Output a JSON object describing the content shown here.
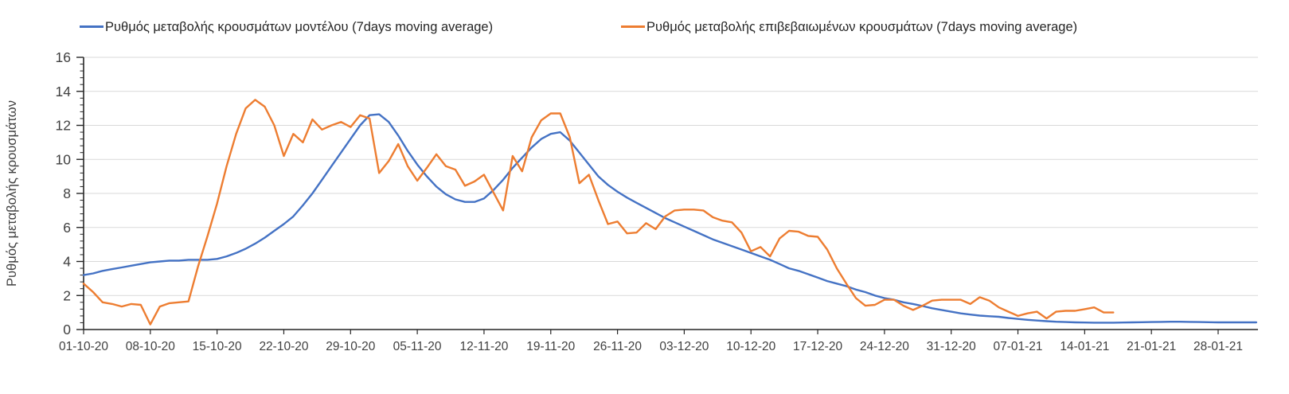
{
  "chart_data": {
    "type": "line",
    "title": "",
    "xlabel": "",
    "ylabel": "Ρυθμός μεταβολής κρουσμάτων",
    "ylim": [
      0,
      16
    ],
    "y_major_step": 2,
    "y_minor_step": 0.4,
    "grid": "horizontal",
    "legend_position": "top",
    "x_tick_step_days": 7,
    "x_tick_labels": [
      "01-10-20",
      "08-10-20",
      "15-10-20",
      "22-10-20",
      "29-10-20",
      "05-11-20",
      "12-11-20",
      "19-11-20",
      "26-11-20",
      "03-12-20",
      "10-12-20",
      "17-12-20",
      "24-12-20",
      "31-12-20",
      "07-01-21",
      "14-01-21",
      "21-01-21",
      "28-01-21"
    ],
    "style": {
      "axis_color": "#262626",
      "grid_color": "#d9d9d9",
      "tick_label_color": "#404040",
      "background": "#ffffff"
    },
    "series": [
      {
        "key": "model",
        "name": "Ρυθμός μεταβολής κρουσμάτων μοντέλου (7days moving average)",
        "color": "#4472c4",
        "start_day": 0,
        "step_days": 1,
        "values": [
          3.2,
          3.3,
          3.45,
          3.55,
          3.65,
          3.75,
          3.85,
          3.95,
          4.0,
          4.05,
          4.05,
          4.1,
          4.1,
          4.1,
          4.15,
          4.3,
          4.5,
          4.75,
          5.05,
          5.4,
          5.8,
          6.2,
          6.65,
          7.3,
          8.0,
          8.8,
          9.6,
          10.4,
          11.2,
          12.0,
          12.6,
          12.65,
          12.2,
          11.4,
          10.5,
          9.7,
          9.0,
          8.4,
          7.95,
          7.65,
          7.5,
          7.5,
          7.7,
          8.2,
          8.8,
          9.5,
          10.1,
          10.7,
          11.2,
          11.5,
          11.6,
          11.1,
          10.4,
          9.7,
          9.0,
          8.5,
          8.1,
          7.75,
          7.45,
          7.15,
          6.85,
          6.55,
          6.3,
          6.05,
          5.8,
          5.55,
          5.3,
          5.1,
          4.9,
          4.7,
          4.5,
          4.3,
          4.1,
          3.85,
          3.6,
          3.45,
          3.25,
          3.05,
          2.85,
          2.7,
          2.55,
          2.35,
          2.2,
          2.0,
          1.85,
          1.75,
          1.6,
          1.5,
          1.38,
          1.25,
          1.15,
          1.05,
          0.95,
          0.88,
          0.82,
          0.78,
          0.75,
          0.68,
          0.62,
          0.57,
          0.53,
          0.49,
          0.46,
          0.44,
          0.42,
          0.41,
          0.4,
          0.4,
          0.4,
          0.41,
          0.42,
          0.43,
          0.44,
          0.45,
          0.46,
          0.46,
          0.45,
          0.44,
          0.43,
          0.42,
          0.42,
          0.42,
          0.42,
          0.42
        ]
      },
      {
        "key": "confirmed",
        "name": "Ρυθμός μεταβολής επιβεβαιωμένων κρουσμάτων (7days moving average)",
        "color": "#ed7d31",
        "start_day": 0,
        "step_days": 1,
        "values": [
          2.7,
          2.2,
          1.6,
          1.5,
          1.35,
          1.5,
          1.45,
          0.3,
          1.35,
          1.55,
          1.6,
          1.65,
          3.7,
          5.5,
          7.4,
          9.6,
          11.5,
          13.0,
          13.5,
          13.1,
          12.0,
          10.2,
          11.5,
          11.0,
          12.35,
          11.75,
          12.0,
          12.2,
          11.9,
          12.6,
          12.4,
          9.2,
          9.9,
          10.9,
          9.6,
          8.75,
          9.5,
          10.3,
          9.6,
          9.4,
          8.45,
          8.7,
          9.1,
          8.05,
          7.0,
          10.2,
          9.3,
          11.3,
          12.3,
          12.7,
          12.7,
          11.3,
          8.6,
          9.1,
          7.6,
          6.2,
          6.35,
          5.65,
          5.7,
          6.25,
          5.9,
          6.65,
          7.0,
          7.05,
          7.05,
          7.0,
          6.6,
          6.4,
          6.3,
          5.7,
          4.6,
          4.85,
          4.3,
          5.35,
          5.8,
          5.75,
          5.5,
          5.45,
          4.7,
          3.6,
          2.7,
          1.85,
          1.4,
          1.45,
          1.75,
          1.75,
          1.4,
          1.15,
          1.4,
          1.7,
          1.75,
          1.75,
          1.75,
          1.5,
          1.9,
          1.7,
          1.3,
          1.05,
          0.8,
          0.95,
          1.05,
          0.65,
          1.05,
          1.1,
          1.1,
          1.2,
          1.3,
          1.0,
          1.0
        ]
      }
    ]
  }
}
